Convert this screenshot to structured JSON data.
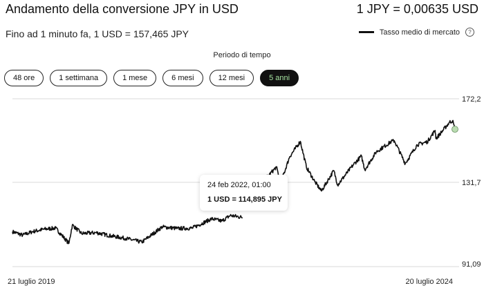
{
  "header": {
    "title": "Andamento della conversione JPY in USD",
    "rate": "1 JPY = 0,00635 USD",
    "subtitle": "Fino ad 1 minuto fa, 1 USD = 157,465 JPY"
  },
  "legend": {
    "label": "Tasso medio di mercato",
    "info_icon": "info-icon"
  },
  "period": {
    "label": "Periodo di tempo",
    "tabs": [
      "48 ore",
      "1 settimana",
      "1 mese",
      "6 mesi",
      "12 mesi",
      "5 anni"
    ],
    "active": "5 anni"
  },
  "colors": {
    "line": "#111111",
    "active_tab_bg": "#111111",
    "active_tab_text": "#a6e3a1",
    "end_marker": "#b9dcb0",
    "grid": "#d9d9d9"
  },
  "tooltip": {
    "date": "24 feb 2022, 01:00",
    "value": "1 USD = 114,895 JPY"
  },
  "chart_data": {
    "type": "line",
    "series": [
      {
        "name": "Tasso medio di mercato",
        "points": [
          [
            "2019-07-21",
            108.0
          ],
          [
            "2019-09-01",
            106.3
          ],
          [
            "2019-10-15",
            108.1
          ],
          [
            "2019-12-01",
            109.2
          ],
          [
            "2020-01-15",
            109.7
          ],
          [
            "2020-03-10",
            102.3
          ],
          [
            "2020-03-24",
            111.2
          ],
          [
            "2020-05-01",
            107.1
          ],
          [
            "2020-07-01",
            107.5
          ],
          [
            "2020-09-01",
            105.9
          ],
          [
            "2020-11-01",
            104.7
          ],
          [
            "2021-01-05",
            102.9
          ],
          [
            "2021-03-30",
            110.3
          ],
          [
            "2021-06-01",
            109.5
          ],
          [
            "2021-08-01",
            109.7
          ],
          [
            "2021-10-20",
            114.2
          ],
          [
            "2021-12-01",
            113.1
          ],
          [
            "2022-01-05",
            115.8
          ],
          [
            "2022-02-24",
            114.895
          ],
          [
            "2022-03-28",
            123.8
          ],
          [
            "2022-04-28",
            130.8
          ],
          [
            "2022-06-15",
            135.5
          ],
          [
            "2022-07-14",
            139.2
          ],
          [
            "2022-08-01",
            131.6
          ],
          [
            "2022-09-07",
            144.2
          ],
          [
            "2022-10-21",
            151.6
          ],
          [
            "2022-11-15",
            139.2
          ],
          [
            "2022-12-20",
            132.1
          ],
          [
            "2023-01-16",
            127.6
          ],
          [
            "2023-03-08",
            137.5
          ],
          [
            "2023-03-24",
            130.6
          ],
          [
            "2023-05-29",
            140.5
          ],
          [
            "2023-06-30",
            144.5
          ],
          [
            "2023-07-14",
            137.9
          ],
          [
            "2023-08-30",
            146.5
          ],
          [
            "2023-10-31",
            151.5
          ],
          [
            "2023-11-13",
            151.9
          ],
          [
            "2023-12-28",
            140.9
          ],
          [
            "2024-02-15",
            150.0
          ],
          [
            "2024-03-28",
            151.4
          ],
          [
            "2024-04-29",
            156.9
          ],
          [
            "2024-05-03",
            152.9
          ],
          [
            "2024-06-28",
            160.9
          ],
          [
            "2024-07-10",
            161.6
          ],
          [
            "2024-07-20",
            157.465
          ]
        ]
      }
    ],
    "x_labels": [
      "21 luglio 2019",
      "20 luglio 2024"
    ],
    "xlim": [
      "2019-07-21",
      "2024-07-20"
    ],
    "y_ticks": [
      "172,2",
      "131,7",
      "91,09"
    ],
    "y_tick_values": [
      172.2,
      131.7,
      91.09
    ],
    "ylim": [
      91.09,
      172.2
    ],
    "grid": true,
    "gap": [
      "2022-02-24",
      "2022-03-28"
    ],
    "highlight_point": [
      "2022-02-24",
      114.895
    ]
  }
}
